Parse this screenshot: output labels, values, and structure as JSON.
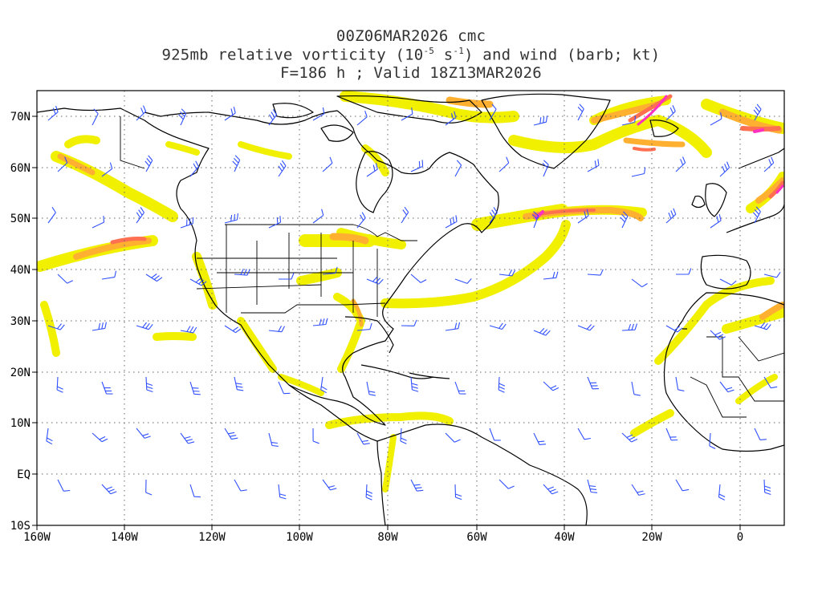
{
  "header": {
    "line1": "00Z06MAR2026 cmc",
    "line2_pre": "925mb relative vorticity (10",
    "line2_exp1": "-5",
    "line2_mid": " s",
    "line2_exp2": "-1",
    "line2_post": ") and wind (barb; kt)",
    "line3": "F=186 h ; Valid 18Z13MAR2026"
  },
  "axes": {
    "lat_labels": [
      "70N",
      "60N",
      "50N",
      "40N",
      "30N",
      "20N",
      "10N",
      "EQ",
      "10S"
    ],
    "lon_labels": [
      "160W",
      "140W",
      "120W",
      "100W",
      "80W",
      "60W",
      "40W",
      "20W",
      "0"
    ]
  },
  "colors": {
    "shade_yellow": "#f0f000",
    "shade_orange": "#ffb030",
    "shade_red": "#ff7050",
    "shade_magenta": "#ff30c0",
    "coast": "#000000",
    "barb": "#3050ff",
    "grid": "#666666"
  }
}
